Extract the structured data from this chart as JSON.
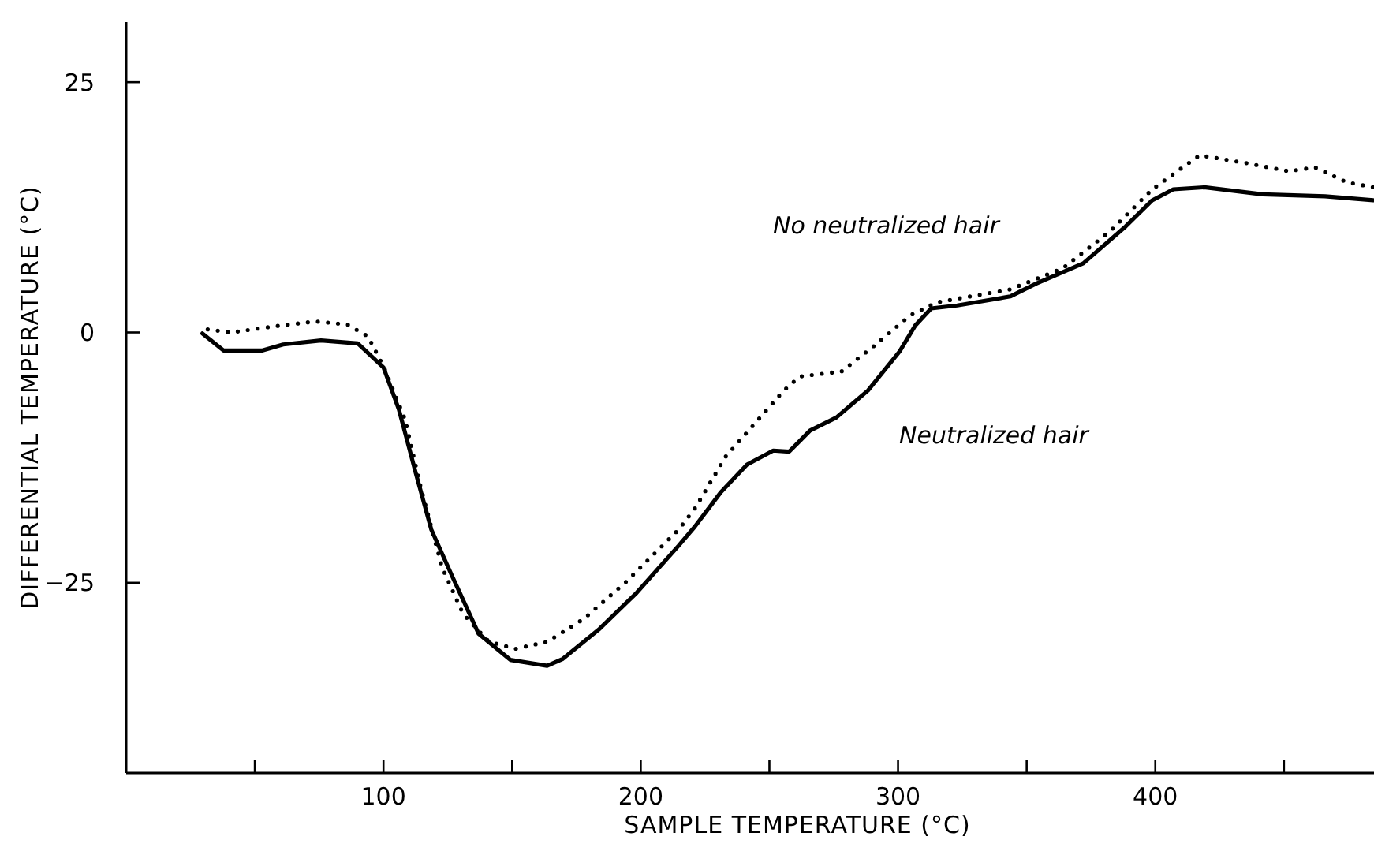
{
  "chart_data": {
    "type": "line",
    "xlabel": "SAMPLE TEMPERATURE (°C)",
    "ylabel": "DIFFERENTIAL TEMPERATURE (°C)",
    "xlim": [
      0,
      485
    ],
    "ylim": [
      -44,
      31
    ],
    "xticks": [
      {
        "value": 50,
        "label": null
      },
      100,
      {
        "value": 150,
        "label": null
      },
      200,
      {
        "value": 250,
        "label": null
      },
      300,
      {
        "value": 350,
        "label": null
      },
      400,
      {
        "value": 450,
        "label": null
      }
    ],
    "yticks": [
      {
        "value": -25,
        "label": "−25"
      },
      0,
      25
    ],
    "grid": false,
    "marker": "none",
    "series": [
      {
        "name": "No neutralized hair",
        "color": "#000000",
        "line_style": "dotted",
        "x": [
          31.7,
          40.9,
          57.2,
          73.6,
          85.9,
          94,
          100.2,
          108.4,
          114.5,
          122.7,
          130.9,
          141,
          151.3,
          163.6,
          177.9,
          194.3,
          214.7,
          221,
          233,
          247.4,
          255.6,
          261.8,
          278,
          290.4,
          304.7,
          315,
          343.6,
          364,
          382.4,
          398.8,
          417.2,
          435.6,
          452,
          462,
          474.4,
          484.7
        ],
        "values": [
          0.3,
          0,
          0.6,
          1.1,
          0.8,
          -0.4,
          -3.5,
          -8.7,
          -15.5,
          -23.4,
          -28.1,
          -30.9,
          -31.6,
          -30.9,
          -28.6,
          -24.9,
          -19.7,
          -17.6,
          -12.4,
          -8.2,
          -5.8,
          -4.4,
          -3.9,
          -1.4,
          1.7,
          3,
          4.3,
          6.4,
          10.1,
          14.3,
          17.7,
          16.9,
          16.1,
          16.5,
          15,
          14.5
        ]
      },
      {
        "name": "Neutralized hair",
        "color": "#000000",
        "line_style": "solid",
        "x": [
          29.6,
          37.8,
          53,
          61,
          75.7,
          90,
          100,
          106,
          112.5,
          118.6,
          126.8,
          137,
          149.3,
          163.6,
          169.7,
          184,
          198.4,
          214.7,
          221,
          231,
          241.3,
          251.5,
          257.7,
          265.8,
          276,
          288.3,
          300.6,
          306.7,
          312.9,
          323,
          343.6,
          353.8,
          372,
          388.5,
          398.8,
          407,
          419,
          441.7,
          466,
          484.7
        ],
        "values": [
          -0.1,
          -1.8,
          -1.8,
          -1.2,
          -0.8,
          -1.1,
          -3.5,
          -7.7,
          -14,
          -19.7,
          -24.4,
          -30.1,
          -32.7,
          -33.3,
          -32.6,
          -29.6,
          -26,
          -21.3,
          -19.4,
          -16,
          -13.2,
          -11.8,
          -11.9,
          -9.8,
          -8.5,
          -5.8,
          -1.9,
          0.7,
          2.4,
          2.7,
          3.6,
          4.9,
          6.9,
          10.6,
          13.2,
          14.3,
          14.5,
          13.8,
          13.6,
          13.2
        ]
      }
    ]
  }
}
